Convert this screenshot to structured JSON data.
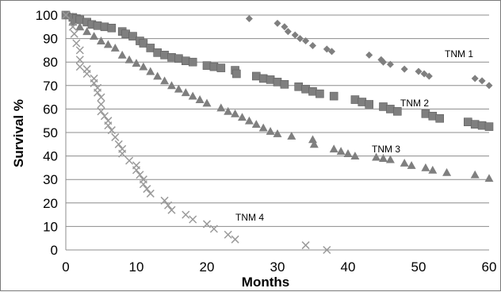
{
  "chart_data": {
    "type": "scatter",
    "title": "",
    "xlabel": "Months",
    "ylabel": "Survival %",
    "xlim": [
      0,
      60
    ],
    "ylim": [
      0,
      100
    ],
    "xticks": [
      0,
      10,
      20,
      30,
      40,
      50,
      60
    ],
    "yticks": [
      0,
      10,
      20,
      30,
      40,
      50,
      60,
      70,
      80,
      90,
      100
    ],
    "x_tick_labels": [
      "0",
      "10",
      "20",
      "30",
      "40",
      "50",
      "60"
    ],
    "y_tick_labels": [
      "0",
      "10",
      "20",
      "30",
      "40",
      "50",
      "60",
      "70",
      "80",
      "90",
      "100"
    ],
    "grid": "horizontal",
    "legend": "none",
    "series": [
      {
        "name": "TNM 1",
        "marker": "diamond",
        "color": "#7f7f7f",
        "points": [
          [
            0,
            100
          ],
          [
            0.5,
            100
          ],
          [
            1,
            99.5
          ],
          [
            1.5,
            99
          ],
          [
            2,
            98.5
          ],
          [
            26,
            98.5
          ],
          [
            30,
            96.5
          ],
          [
            31,
            95
          ],
          [
            31.5,
            93
          ],
          [
            32.5,
            91.5
          ],
          [
            33.2,
            90
          ],
          [
            34,
            89
          ],
          [
            35,
            87
          ],
          [
            37,
            85.5
          ],
          [
            37.7,
            84.5
          ],
          [
            43,
            83
          ],
          [
            44.7,
            81
          ],
          [
            45,
            80
          ],
          [
            46,
            79
          ],
          [
            48,
            77
          ],
          [
            50,
            76
          ],
          [
            50.8,
            75
          ],
          [
            51.5,
            74
          ],
          [
            58,
            73
          ],
          [
            59,
            72
          ],
          [
            60,
            70
          ]
        ]
      },
      {
        "name": "TNM 2",
        "marker": "square",
        "color": "#7f7f7f",
        "points": [
          [
            0,
            100
          ],
          [
            1,
            99
          ],
          [
            1.5,
            98.5
          ],
          [
            2,
            98
          ],
          [
            3,
            97
          ],
          [
            3.7,
            96
          ],
          [
            4.5,
            95.5
          ],
          [
            5.5,
            95
          ],
          [
            6.5,
            94.5
          ],
          [
            8,
            93
          ],
          [
            8.5,
            92
          ],
          [
            9.5,
            91
          ],
          [
            10.5,
            89
          ],
          [
            11,
            88
          ],
          [
            12,
            86
          ],
          [
            13,
            84
          ],
          [
            14,
            83
          ],
          [
            15,
            82
          ],
          [
            16,
            81.5
          ],
          [
            17,
            80.5
          ],
          [
            18,
            80
          ],
          [
            20,
            78.5
          ],
          [
            21,
            78
          ],
          [
            22,
            77.5
          ],
          [
            24,
            76.5
          ],
          [
            24.2,
            75
          ],
          [
            27,
            74
          ],
          [
            28,
            73
          ],
          [
            29,
            72.5
          ],
          [
            30,
            71.5
          ],
          [
            31,
            70.5
          ],
          [
            33,
            69.5
          ],
          [
            34,
            68.5
          ],
          [
            35,
            67.5
          ],
          [
            36,
            66.5
          ],
          [
            38,
            65.5
          ],
          [
            41,
            64
          ],
          [
            42,
            63
          ],
          [
            43,
            62
          ],
          [
            45,
            61
          ],
          [
            46,
            60
          ],
          [
            47,
            59
          ],
          [
            51,
            58
          ],
          [
            52,
            57
          ],
          [
            53,
            56
          ],
          [
            57,
            54.5
          ],
          [
            58,
            53.5
          ],
          [
            59,
            53
          ],
          [
            60,
            52.5
          ]
        ]
      },
      {
        "name": "TNM 3",
        "marker": "triangle",
        "color": "#7f7f7f",
        "points": [
          [
            0,
            100
          ],
          [
            1,
            97
          ],
          [
            2,
            95
          ],
          [
            3,
            93
          ],
          [
            4,
            91
          ],
          [
            5,
            89
          ],
          [
            6,
            87.5
          ],
          [
            7,
            86
          ],
          [
            8,
            83
          ],
          [
            9,
            81
          ],
          [
            10,
            79.5
          ],
          [
            11,
            78
          ],
          [
            12,
            76
          ],
          [
            13,
            74
          ],
          [
            14,
            72
          ],
          [
            15,
            70
          ],
          [
            16,
            68.5
          ],
          [
            17,
            67
          ],
          [
            18,
            65.5
          ],
          [
            19,
            64
          ],
          [
            20,
            62.5
          ],
          [
            22,
            60.5
          ],
          [
            23,
            59
          ],
          [
            24,
            58
          ],
          [
            25,
            56.5
          ],
          [
            26,
            55
          ],
          [
            27,
            53.5
          ],
          [
            28,
            52
          ],
          [
            29,
            50.5
          ],
          [
            30,
            49.5
          ],
          [
            32,
            48.5
          ],
          [
            35,
            47
          ],
          [
            35.2,
            45
          ],
          [
            38,
            43
          ],
          [
            39,
            42
          ],
          [
            40,
            41
          ],
          [
            41,
            40
          ],
          [
            44,
            39.5
          ],
          [
            45,
            39
          ],
          [
            46,
            38.5
          ],
          [
            48,
            37
          ],
          [
            49,
            36
          ],
          [
            51,
            35
          ],
          [
            52,
            34
          ],
          [
            54,
            33
          ],
          [
            58,
            32
          ],
          [
            60,
            30.5
          ]
        ]
      },
      {
        "name": "TNM 4",
        "marker": "x",
        "color": "#9a9a9a",
        "points": [
          [
            0,
            100
          ],
          [
            1,
            95
          ],
          [
            1.2,
            92
          ],
          [
            1.5,
            88
          ],
          [
            2,
            85
          ],
          [
            2,
            81
          ],
          [
            2,
            78
          ],
          [
            3,
            77
          ],
          [
            3,
            75
          ],
          [
            4,
            73
          ],
          [
            4,
            71
          ],
          [
            4.5,
            69
          ],
          [
            4.5,
            67
          ],
          [
            5,
            65
          ],
          [
            5,
            62
          ],
          [
            5,
            59
          ],
          [
            5.5,
            57
          ],
          [
            6,
            55
          ],
          [
            6,
            53
          ],
          [
            6.5,
            51
          ],
          [
            7,
            48
          ],
          [
            7.5,
            45
          ],
          [
            8,
            43
          ],
          [
            8,
            41
          ],
          [
            9,
            38
          ],
          [
            10,
            36
          ],
          [
            10,
            34
          ],
          [
            10.5,
            32
          ],
          [
            11,
            30
          ],
          [
            11,
            28
          ],
          [
            11.5,
            26
          ],
          [
            12,
            24
          ],
          [
            14,
            21
          ],
          [
            14.5,
            19
          ],
          [
            15,
            17
          ],
          [
            17,
            15
          ],
          [
            18,
            13
          ],
          [
            20,
            11
          ],
          [
            21,
            9
          ],
          [
            23,
            6.5
          ],
          [
            24,
            4.5
          ],
          [
            34,
            2
          ],
          [
            37,
            0
          ]
        ]
      }
    ],
    "annotations": [
      "TNM 1",
      "TNM 2",
      "TNM 3",
      "TNM 4"
    ]
  }
}
